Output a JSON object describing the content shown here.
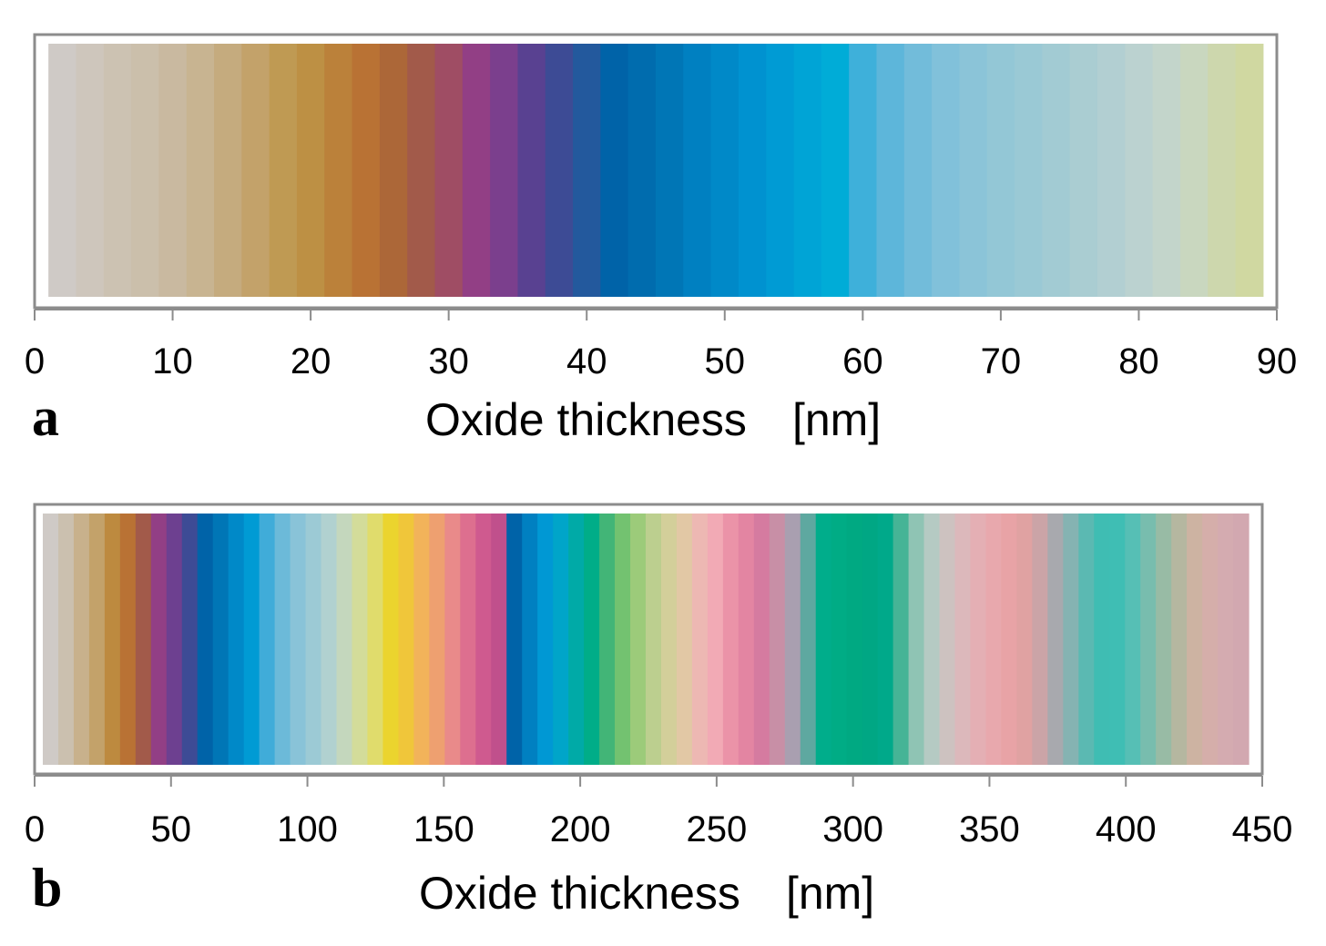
{
  "chart_data": [
    {
      "type": "heatmap",
      "panel_label": "a",
      "xlabel": "Oxide thickness",
      "xunit": "[nm]",
      "xlim": [
        0,
        90
      ],
      "xticks": [
        "0",
        "10",
        "20",
        "30",
        "40",
        "50",
        "60",
        "70",
        "80",
        "90"
      ],
      "band_range": [
        1,
        89
      ],
      "colors": [
        "#cfcac6",
        "#cec6bc",
        "#ccc2b2",
        "#cbbfab",
        "#c9b9a0",
        "#c8b491",
        "#c5ab7e",
        "#c3a26a",
        "#bf9a53",
        "#bd9044",
        "#bb813a",
        "#b97234",
        "#ac6738",
        "#a25a4a",
        "#9f4d64",
        "#923f85",
        "#7b3f8d",
        "#594191",
        "#3d4b95",
        "#23599d",
        "#0063a8",
        "#006cae",
        "#0076b6",
        "#0080c1",
        "#0089c8",
        "#0092d0",
        "#009bd4",
        "#00a4d6",
        "#00acd7",
        "#3eb0da",
        "#5db6da",
        "#72bcda",
        "#81c1da",
        "#8bc4d8",
        "#93c7d6",
        "#9ac9d5",
        "#a2cbd3",
        "#aacdd2",
        "#b2cfd2",
        "#bbd2d0",
        "#c3d5cb",
        "#c9d7bf",
        "#cdd7ad",
        "#d0d8a1"
      ]
    },
    {
      "type": "heatmap",
      "panel_label": "b",
      "xlabel": "Oxide thickness",
      "xunit": "[nm]",
      "xlim": [
        0,
        450
      ],
      "xticks": [
        "0",
        "50",
        "100",
        "150",
        "200",
        "250",
        "300",
        "350",
        "400",
        "450"
      ],
      "band_range": [
        3,
        445
      ],
      "colors": [
        "#cfcac6",
        "#cbc0af",
        "#c8b18c",
        "#c3a26a",
        "#bd8a3f",
        "#b97234",
        "#a25a4a",
        "#923f85",
        "#6d4090",
        "#3d4b95",
        "#0063a8",
        "#0076b6",
        "#0089c8",
        "#009bd4",
        "#40acd9",
        "#6cbad9",
        "#89c3d8",
        "#9ccad5",
        "#b1d1d0",
        "#c4d7bd",
        "#d3dc9a",
        "#e0dc6c",
        "#ebd42e",
        "#f0c63a",
        "#f2b35a",
        "#eea070",
        "#e98a8a",
        "#dd6f8f",
        "#cf5a8f",
        "#c0508c",
        "#0063a8",
        "#0080c1",
        "#0098d4",
        "#00a5c9",
        "#00aaa7",
        "#00ad88",
        "#42b577",
        "#73c270",
        "#9ccb7a",
        "#bccf8f",
        "#d3cf9a",
        "#e2c8a5",
        "#edb8b3",
        "#f2aab5",
        "#eb93a8",
        "#e385a2",
        "#d57ba0",
        "#c88fa6",
        "#a99fb0",
        "#5ea8a0",
        "#00ad8b",
        "#00ac85",
        "#00a982",
        "#00a784",
        "#00a98a",
        "#46b496",
        "#8fc4b4",
        "#b5cac3",
        "#cdc2c0",
        "#dcb8bb",
        "#e4afb4",
        "#e8a8ad",
        "#e8a3a6",
        "#e0a2a2",
        "#cba4a7",
        "#a8a9ae",
        "#85b3b2",
        "#5bb9b2",
        "#3fbdb3",
        "#3fbeb4",
        "#56bfb5",
        "#78bdae",
        "#98bba5",
        "#b5b7a0",
        "#cdb3a2",
        "#d5aeaa",
        "#d4abb0",
        "#d2a8b0"
      ]
    }
  ]
}
